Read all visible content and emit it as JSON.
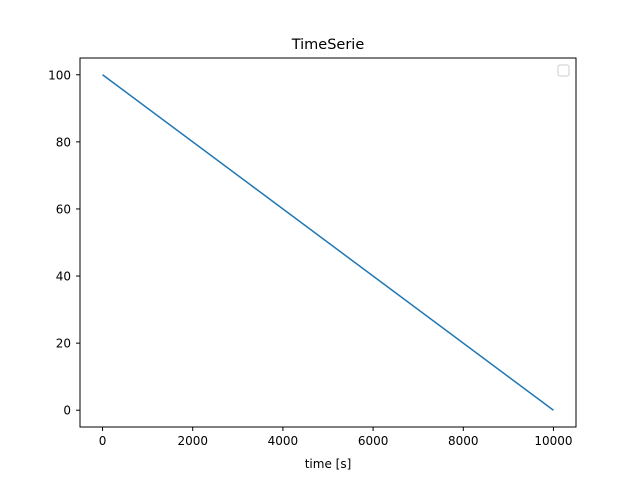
{
  "chart_data": {
    "type": "line",
    "title": "TimeSerie",
    "xlabel": "time [s]",
    "ylabel": "",
    "xlim": [
      -500,
      10500
    ],
    "ylim": [
      -5,
      105
    ],
    "x_ticks": [
      0,
      2000,
      4000,
      6000,
      8000,
      10000
    ],
    "y_ticks": [
      0,
      20,
      40,
      60,
      80,
      100
    ],
    "grid": false,
    "legend": {
      "placement": "top-right",
      "entries": []
    },
    "series": [
      {
        "color": "#1f77b4",
        "x": [
          0,
          10000
        ],
        "y": [
          100,
          0
        ]
      }
    ]
  }
}
